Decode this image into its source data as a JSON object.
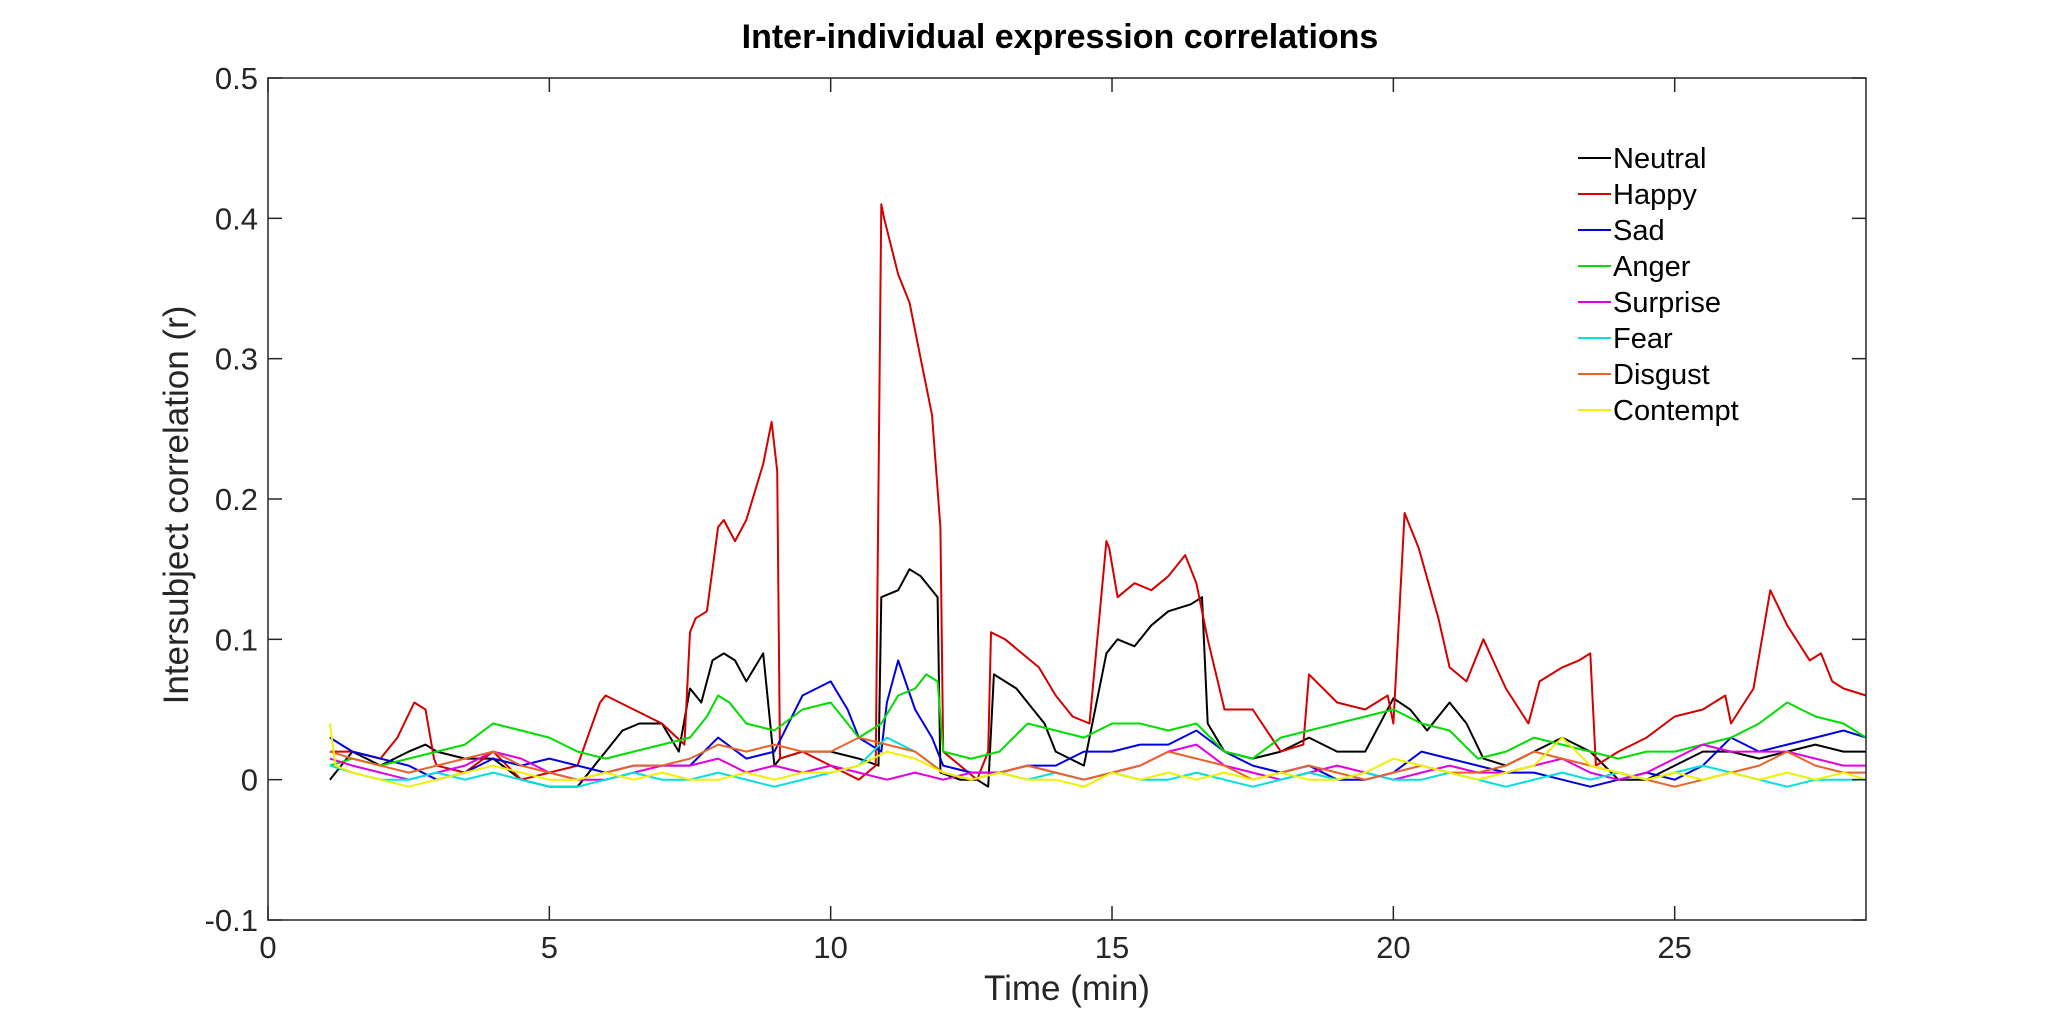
{
  "chart_data": {
    "type": "line",
    "title": "Inter-individual expression correlations",
    "xlabel": "Time (min)",
    "ylabel": "Intersubject correlation (r)",
    "xlim": [
      0,
      28.4
    ],
    "ylim": [
      -0.1,
      0.5
    ],
    "xticks": [
      0,
      5,
      10,
      15,
      20,
      25
    ],
    "xtick_labels": [
      "0",
      "5",
      "10",
      "15",
      "20",
      "25"
    ],
    "yticks": [
      -0.1,
      0,
      0.1,
      0.2,
      0.3,
      0.4,
      0.5
    ],
    "ytick_labels": [
      "-0.1",
      "0",
      "0.1",
      "0.2",
      "0.3",
      "0.4",
      "0.5"
    ],
    "grid": false,
    "legend_position": "top-right",
    "series": [
      {
        "name": "Neutral",
        "color": "#000000",
        "x": [
          1.1,
          1.5,
          2.0,
          2.5,
          2.8,
          3.0,
          3.5,
          4.0,
          4.5,
          5.0,
          5.5,
          6.0,
          6.3,
          6.6,
          7.0,
          7.3,
          7.5,
          7.7,
          7.9,
          8.1,
          8.3,
          8.5,
          8.8,
          9.0,
          9.1,
          9.5,
          10.0,
          10.5,
          10.85,
          10.9,
          11.2,
          11.4,
          11.6,
          11.9,
          11.95,
          12.3,
          12.6,
          12.8,
          12.9,
          13.3,
          13.6,
          13.8,
          14.0,
          14.5,
          14.9,
          15.1,
          15.4,
          15.7,
          16.0,
          16.4,
          16.6,
          16.7,
          17.0,
          17.5,
          18.0,
          18.5,
          19.0,
          19.5,
          20.0,
          20.3,
          20.6,
          21.0,
          21.3,
          21.6,
          22.0,
          22.5,
          23.0,
          23.5,
          24.0,
          24.5,
          25.0,
          25.5,
          26.0,
          26.5,
          27.0,
          27.5,
          28.0,
          28.4
        ],
        "y": [
          0.0,
          0.02,
          0.01,
          0.02,
          0.025,
          0.02,
          0.015,
          0.015,
          0.0,
          -0.005,
          -0.005,
          0.02,
          0.035,
          0.04,
          0.04,
          0.02,
          0.065,
          0.055,
          0.085,
          0.09,
          0.085,
          0.07,
          0.09,
          0.01,
          0.015,
          0.02,
          0.02,
          0.015,
          0.01,
          0.13,
          0.135,
          0.15,
          0.145,
          0.13,
          0.005,
          0.0,
          0.0,
          -0.005,
          0.075,
          0.065,
          0.05,
          0.04,
          0.02,
          0.01,
          0.09,
          0.1,
          0.095,
          0.11,
          0.12,
          0.125,
          0.13,
          0.04,
          0.02,
          0.015,
          0.02,
          0.03,
          0.02,
          0.02,
          0.058,
          0.05,
          0.035,
          0.055,
          0.04,
          0.015,
          0.01,
          0.02,
          0.03,
          0.02,
          0.0,
          0.0,
          0.01,
          0.02,
          0.02,
          0.015,
          0.02,
          0.025,
          0.02,
          0.02
        ]
      },
      {
        "name": "Happy",
        "color": "#d40000",
        "x": [
          1.1,
          1.5,
          2.0,
          2.3,
          2.6,
          2.8,
          2.95,
          3.0,
          3.5,
          4.0,
          4.5,
          5.0,
          5.5,
          5.9,
          6.0,
          6.5,
          7.0,
          7.4,
          7.5,
          7.6,
          7.8,
          8.0,
          8.1,
          8.3,
          8.5,
          8.8,
          8.95,
          9.05,
          9.1,
          9.5,
          10.0,
          10.5,
          10.8,
          10.9,
          10.95,
          11.2,
          11.4,
          11.6,
          11.8,
          11.95,
          12.0,
          12.3,
          12.6,
          12.8,
          12.85,
          13.1,
          13.4,
          13.7,
          14.0,
          14.3,
          14.6,
          14.9,
          14.95,
          15.1,
          15.4,
          15.7,
          16.0,
          16.3,
          16.5,
          16.7,
          17.0,
          17.5,
          18.0,
          18.4,
          18.5,
          19.0,
          19.5,
          19.9,
          20.0,
          20.2,
          20.45,
          20.8,
          21.0,
          21.3,
          21.6,
          22.0,
          22.4,
          22.6,
          23.0,
          23.3,
          23.5,
          23.6,
          24.0,
          24.5,
          25.0,
          25.5,
          25.9,
          26.0,
          26.4,
          26.7,
          27.0,
          27.4,
          27.6,
          27.8,
          28.0,
          28.4
        ],
        "y": [
          0.02,
          0.02,
          0.015,
          0.03,
          0.055,
          0.05,
          0.015,
          0.01,
          0.005,
          0.02,
          0.0,
          0.005,
          0.01,
          0.055,
          0.06,
          0.05,
          0.04,
          0.025,
          0.105,
          0.115,
          0.12,
          0.18,
          0.185,
          0.17,
          0.185,
          0.225,
          0.255,
          0.22,
          0.015,
          0.02,
          0.01,
          0.0,
          0.01,
          0.41,
          0.4,
          0.36,
          0.34,
          0.3,
          0.26,
          0.18,
          0.02,
          0.01,
          0.0,
          0.02,
          0.105,
          0.1,
          0.09,
          0.08,
          0.06,
          0.045,
          0.04,
          0.17,
          0.165,
          0.13,
          0.14,
          0.135,
          0.145,
          0.16,
          0.14,
          0.1,
          0.05,
          0.05,
          0.02,
          0.025,
          0.075,
          0.055,
          0.05,
          0.06,
          0.04,
          0.19,
          0.165,
          0.115,
          0.08,
          0.07,
          0.1,
          0.065,
          0.04,
          0.07,
          0.08,
          0.085,
          0.09,
          0.01,
          0.02,
          0.03,
          0.045,
          0.05,
          0.06,
          0.04,
          0.065,
          0.135,
          0.11,
          0.085,
          0.09,
          0.07,
          0.065,
          0.06
        ]
      },
      {
        "name": "Sad",
        "color": "#0000e0",
        "x": [
          1.1,
          1.5,
          2.0,
          2.5,
          3.0,
          3.5,
          4.0,
          4.5,
          5.0,
          5.5,
          6.0,
          6.5,
          7.0,
          7.5,
          8.0,
          8.5,
          9.0,
          9.5,
          10.0,
          10.3,
          10.5,
          10.9,
          11.0,
          11.2,
          11.5,
          11.8,
          12.0,
          12.5,
          13.0,
          13.5,
          14.0,
          14.5,
          15.0,
          15.5,
          16.0,
          16.5,
          17.0,
          17.5,
          18.0,
          18.5,
          19.0,
          19.5,
          20.0,
          20.5,
          21.0,
          21.5,
          22.0,
          22.5,
          23.0,
          23.5,
          24.0,
          24.5,
          25.0,
          25.5,
          26.0,
          26.5,
          27.0,
          27.5,
          28.0,
          28.4
        ],
        "y": [
          0.03,
          0.02,
          0.015,
          0.01,
          0.0,
          0.005,
          0.015,
          0.01,
          0.015,
          0.01,
          0.005,
          0.01,
          0.01,
          0.01,
          0.03,
          0.015,
          0.02,
          0.06,
          0.07,
          0.05,
          0.03,
          0.02,
          0.055,
          0.085,
          0.05,
          0.03,
          0.01,
          0.005,
          0.005,
          0.01,
          0.01,
          0.02,
          0.02,
          0.025,
          0.025,
          0.035,
          0.02,
          0.01,
          0.005,
          0.01,
          0.0,
          0.0,
          0.005,
          0.02,
          0.015,
          0.01,
          0.005,
          0.005,
          0.0,
          -0.005,
          0.0,
          0.005,
          0.0,
          0.01,
          0.03,
          0.02,
          0.025,
          0.03,
          0.035,
          0.03
        ]
      },
      {
        "name": "Anger",
        "color": "#00dd00",
        "x": [
          1.1,
          1.5,
          2.0,
          2.5,
          3.0,
          3.5,
          4.0,
          4.5,
          5.0,
          5.5,
          6.0,
          6.5,
          7.0,
          7.5,
          7.8,
          8.0,
          8.2,
          8.5,
          9.0,
          9.5,
          10.0,
          10.5,
          10.9,
          11.2,
          11.5,
          11.7,
          11.9,
          12.0,
          12.5,
          13.0,
          13.5,
          14.0,
          14.5,
          15.0,
          15.5,
          16.0,
          16.5,
          17.0,
          17.5,
          18.0,
          18.5,
          19.0,
          19.5,
          20.0,
          20.5,
          21.0,
          21.5,
          22.0,
          22.5,
          23.0,
          23.5,
          24.0,
          24.5,
          25.0,
          25.5,
          26.0,
          26.5,
          27.0,
          27.5,
          28.0,
          28.4
        ],
        "y": [
          0.01,
          0.015,
          0.01,
          0.015,
          0.02,
          0.025,
          0.04,
          0.035,
          0.03,
          0.02,
          0.015,
          0.02,
          0.025,
          0.03,
          0.045,
          0.06,
          0.055,
          0.04,
          0.035,
          0.05,
          0.055,
          0.03,
          0.04,
          0.06,
          0.065,
          0.075,
          0.07,
          0.02,
          0.015,
          0.02,
          0.04,
          0.035,
          0.03,
          0.04,
          0.04,
          0.035,
          0.04,
          0.02,
          0.015,
          0.03,
          0.035,
          0.04,
          0.045,
          0.05,
          0.04,
          0.035,
          0.015,
          0.02,
          0.03,
          0.025,
          0.02,
          0.015,
          0.02,
          0.02,
          0.025,
          0.03,
          0.04,
          0.055,
          0.045,
          0.04,
          0.03
        ]
      },
      {
        "name": "Surprise",
        "color": "#e000e0",
        "x": [
          1.1,
          1.5,
          2.0,
          2.5,
          3.0,
          3.5,
          4.0,
          4.5,
          5.0,
          5.5,
          6.0,
          6.5,
          7.0,
          7.5,
          8.0,
          8.5,
          9.0,
          9.5,
          10.0,
          10.5,
          11.0,
          11.5,
          12.0,
          12.5,
          13.0,
          13.5,
          14.0,
          14.5,
          15.0,
          15.5,
          16.0,
          16.5,
          17.0,
          17.5,
          18.0,
          18.5,
          19.0,
          19.5,
          20.0,
          20.5,
          21.0,
          21.5,
          22.0,
          22.5,
          23.0,
          23.5,
          24.0,
          24.5,
          25.0,
          25.5,
          26.0,
          26.5,
          27.0,
          27.5,
          28.0,
          28.4
        ],
        "y": [
          0.015,
          0.01,
          0.005,
          0.0,
          0.005,
          0.01,
          0.02,
          0.015,
          0.005,
          0.0,
          0.0,
          0.005,
          0.01,
          0.01,
          0.015,
          0.005,
          0.01,
          0.005,
          0.01,
          0.005,
          0.0,
          0.005,
          0.0,
          0.005,
          0.005,
          0.01,
          0.005,
          0.0,
          0.005,
          0.01,
          0.02,
          0.025,
          0.01,
          0.005,
          0.0,
          0.005,
          0.01,
          0.005,
          0.0,
          0.005,
          0.01,
          0.005,
          0.005,
          0.01,
          0.015,
          0.005,
          0.0,
          0.005,
          0.015,
          0.025,
          0.02,
          0.02,
          0.02,
          0.015,
          0.01,
          0.01
        ]
      },
      {
        "name": "Fear",
        "color": "#00e0e0",
        "x": [
          1.1,
          1.5,
          2.0,
          2.5,
          3.0,
          3.5,
          4.0,
          4.5,
          5.0,
          5.5,
          6.0,
          6.5,
          7.0,
          7.5,
          8.0,
          8.5,
          9.0,
          9.5,
          10.0,
          10.5,
          11.0,
          11.5,
          12.0,
          12.5,
          13.0,
          13.5,
          14.0,
          14.5,
          15.0,
          15.5,
          16.0,
          16.5,
          17.0,
          17.5,
          18.0,
          18.5,
          19.0,
          19.5,
          20.0,
          20.5,
          21.0,
          21.5,
          22.0,
          22.5,
          23.0,
          23.5,
          24.0,
          24.5,
          25.0,
          25.5,
          26.0,
          26.5,
          27.0,
          27.5,
          28.0,
          28.4
        ],
        "y": [
          0.01,
          0.005,
          0.0,
          0.0,
          0.005,
          0.0,
          0.005,
          0.0,
          -0.005,
          -0.005,
          0.0,
          0.005,
          0.0,
          0.0,
          0.005,
          0.0,
          -0.005,
          0.0,
          0.005,
          0.01,
          0.03,
          0.02,
          0.005,
          0.0,
          0.005,
          0.0,
          0.005,
          0.0,
          0.005,
          0.0,
          0.0,
          0.005,
          0.0,
          -0.005,
          0.0,
          0.005,
          0.0,
          0.005,
          0.0,
          0.0,
          0.005,
          0.0,
          -0.005,
          0.0,
          0.005,
          0.0,
          0.005,
          0.0,
          0.005,
          0.01,
          0.005,
          0.0,
          -0.005,
          0.0,
          0.0,
          0.0
        ]
      },
      {
        "name": "Disgust",
        "color": "#e8642a",
        "x": [
          1.1,
          1.5,
          2.0,
          2.5,
          3.0,
          3.5,
          4.0,
          4.5,
          5.0,
          5.5,
          6.0,
          6.5,
          7.0,
          7.5,
          8.0,
          8.5,
          9.0,
          9.5,
          10.0,
          10.5,
          11.0,
          11.5,
          12.0,
          12.5,
          13.0,
          13.5,
          14.0,
          14.5,
          15.0,
          15.5,
          16.0,
          16.5,
          17.0,
          17.5,
          18.0,
          18.5,
          19.0,
          19.5,
          20.0,
          20.5,
          21.0,
          21.5,
          22.0,
          22.5,
          23.0,
          23.5,
          24.0,
          24.5,
          25.0,
          25.5,
          26.0,
          26.5,
          27.0,
          27.5,
          28.0,
          28.4
        ],
        "y": [
          0.02,
          0.015,
          0.01,
          0.005,
          0.01,
          0.015,
          0.02,
          0.01,
          0.005,
          0.0,
          0.005,
          0.01,
          0.01,
          0.015,
          0.025,
          0.02,
          0.025,
          0.02,
          0.02,
          0.03,
          0.025,
          0.02,
          0.005,
          0.0,
          0.005,
          0.01,
          0.005,
          0.0,
          0.005,
          0.01,
          0.02,
          0.015,
          0.01,
          0.0,
          0.005,
          0.01,
          0.005,
          0.0,
          0.005,
          0.01,
          0.005,
          0.005,
          0.01,
          0.02,
          0.015,
          0.01,
          0.005,
          0.0,
          -0.005,
          0.0,
          0.005,
          0.01,
          0.02,
          0.01,
          0.005,
          0.005
        ]
      },
      {
        "name": "Contempt",
        "color": "#f0f000",
        "x": [
          1.1,
          1.2,
          1.5,
          2.0,
          2.5,
          3.0,
          3.5,
          4.0,
          4.5,
          5.0,
          5.5,
          6.0,
          6.5,
          7.0,
          7.5,
          8.0,
          8.5,
          9.0,
          9.5,
          10.0,
          10.5,
          11.0,
          11.5,
          12.0,
          12.5,
          13.0,
          13.5,
          14.0,
          14.5,
          15.0,
          15.5,
          16.0,
          16.5,
          17.0,
          17.5,
          18.0,
          18.5,
          19.0,
          19.5,
          20.0,
          20.5,
          21.0,
          21.5,
          22.0,
          22.5,
          23.0,
          23.5,
          24.0,
          24.5,
          25.0,
          25.5,
          26.0,
          26.5,
          27.0,
          27.5,
          28.0,
          28.4
        ],
        "y": [
          0.04,
          0.01,
          0.005,
          0.0,
          -0.005,
          0.0,
          0.005,
          0.01,
          0.005,
          0.0,
          0.0,
          0.005,
          0.0,
          0.005,
          0.0,
          0.0,
          0.005,
          0.0,
          0.005,
          0.005,
          0.01,
          0.02,
          0.015,
          0.005,
          0.0,
          0.005,
          0.0,
          0.0,
          -0.005,
          0.005,
          0.0,
          0.005,
          0.0,
          0.005,
          0.0,
          0.005,
          0.0,
          0.0,
          0.005,
          0.015,
          0.01,
          0.005,
          0.0,
          0.005,
          0.01,
          0.03,
          0.01,
          0.005,
          0.0,
          0.005,
          0.0,
          0.005,
          0.0,
          0.005,
          0.0,
          0.005,
          0.0
        ]
      }
    ]
  }
}
